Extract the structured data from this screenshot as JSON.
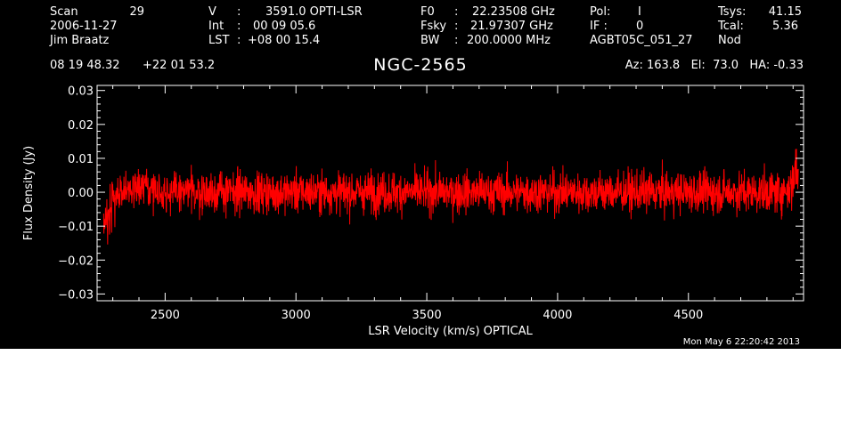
{
  "header": {
    "scan_label": "Scan",
    "scan_number": "29",
    "date": "2006-11-27",
    "observer": "Jim Braatz",
    "v_label": "V",
    "v_sep": ":",
    "v_value": "3591.0 OPTI-LSR",
    "int_label": "Int",
    "int_sep": ":",
    "int_value": "00 09 05.6",
    "lst_label": "LST",
    "lst_sep": ":",
    "lst_value": "+08 00 15.4",
    "f0_label": "F0",
    "f0_sep": ":",
    "f0_value": "22.23508 GHz",
    "fsky_label": "Fsky",
    "fsky_sep": ":",
    "fsky_value": "21.97307 GHz",
    "bw_label": "BW",
    "bw_sep": ":",
    "bw_value": "200.0000 MHz",
    "pol_label": "Pol:",
    "pol_value": "I",
    "if_label": "IF :",
    "if_value": "0",
    "project": "AGBT05C_051_27",
    "tsys_label": "Tsys:",
    "tsys_value": "41.15",
    "tcal_label": "Tcal:",
    "tcal_value": "5.36",
    "mode": "Nod",
    "ra": "08 19 48.32",
    "dec": "+22 01 53.2",
    "az_el_ha": "Az: 163.8   El:  73.0   HA: -0.33"
  },
  "timestamp": "Mon May  6 22:20:42 2013",
  "colors": {
    "background": "#000000",
    "axes": "#ffffff",
    "trace": "#ff0000",
    "page": "#ffffff"
  },
  "chart_data": {
    "type": "line",
    "title": "NGC-2565",
    "xlabel": "LSR Velocity (km/s) OPTICAL",
    "ylabel": "Flux Density (Jy)",
    "xlim": [
      2240,
      4940
    ],
    "ylim": [
      -0.032,
      0.0315
    ],
    "xticks": [
      2500,
      3000,
      3500,
      4000,
      4500
    ],
    "xtick_labels": [
      "2500",
      "3000",
      "3500",
      "4000",
      "4500"
    ],
    "yticks": [
      -0.03,
      -0.02,
      -0.01,
      0.0,
      0.01,
      0.02,
      0.03
    ],
    "ytick_labels": [
      "−0.03",
      "−0.02",
      "−0.01",
      "0.00",
      "0.01",
      "0.02",
      "0.03"
    ],
    "grid": false,
    "series": [
      {
        "color": "#ff0000",
        "x": [
          2265,
          2280,
          2300,
          2330,
          2360,
          2400,
          2450,
          2500,
          2550,
          2600,
          2650,
          2700,
          2750,
          2800,
          2850,
          2900,
          2950,
          3000,
          3050,
          3100,
          3150,
          3200,
          3250,
          3300,
          3350,
          3400,
          3450,
          3500,
          3550,
          3600,
          3650,
          3700,
          3750,
          3800,
          3850,
          3900,
          3950,
          4000,
          4050,
          4100,
          4150,
          4200,
          4250,
          4300,
          4350,
          4400,
          4450,
          4500,
          4550,
          4600,
          4650,
          4700,
          4750,
          4800,
          4850,
          4880,
          4900,
          4910,
          4920
        ],
        "y": [
          -0.011,
          -0.006,
          -0.002,
          0.0,
          0.001,
          0.001,
          0.001,
          0.0,
          0.0,
          0.0,
          0.0,
          0.0,
          0.0,
          0.0,
          0.0,
          0.0,
          0.0,
          0.0,
          0.0,
          0.0,
          0.0,
          0.0,
          0.0,
          0.0,
          0.0,
          0.0,
          0.0,
          0.0,
          0.0,
          0.0,
          0.0,
          0.0,
          0.0,
          0.0,
          0.0,
          0.0,
          0.0,
          0.0,
          0.0,
          0.0,
          0.0,
          0.0,
          0.0,
          0.0,
          0.0,
          0.0,
          0.0,
          0.0,
          0.0,
          0.0,
          0.0,
          0.0,
          0.0,
          0.0,
          0.0,
          0.001,
          0.003,
          0.008,
          0.002
        ],
        "noise_rms_jy": 0.006
      }
    ]
  }
}
